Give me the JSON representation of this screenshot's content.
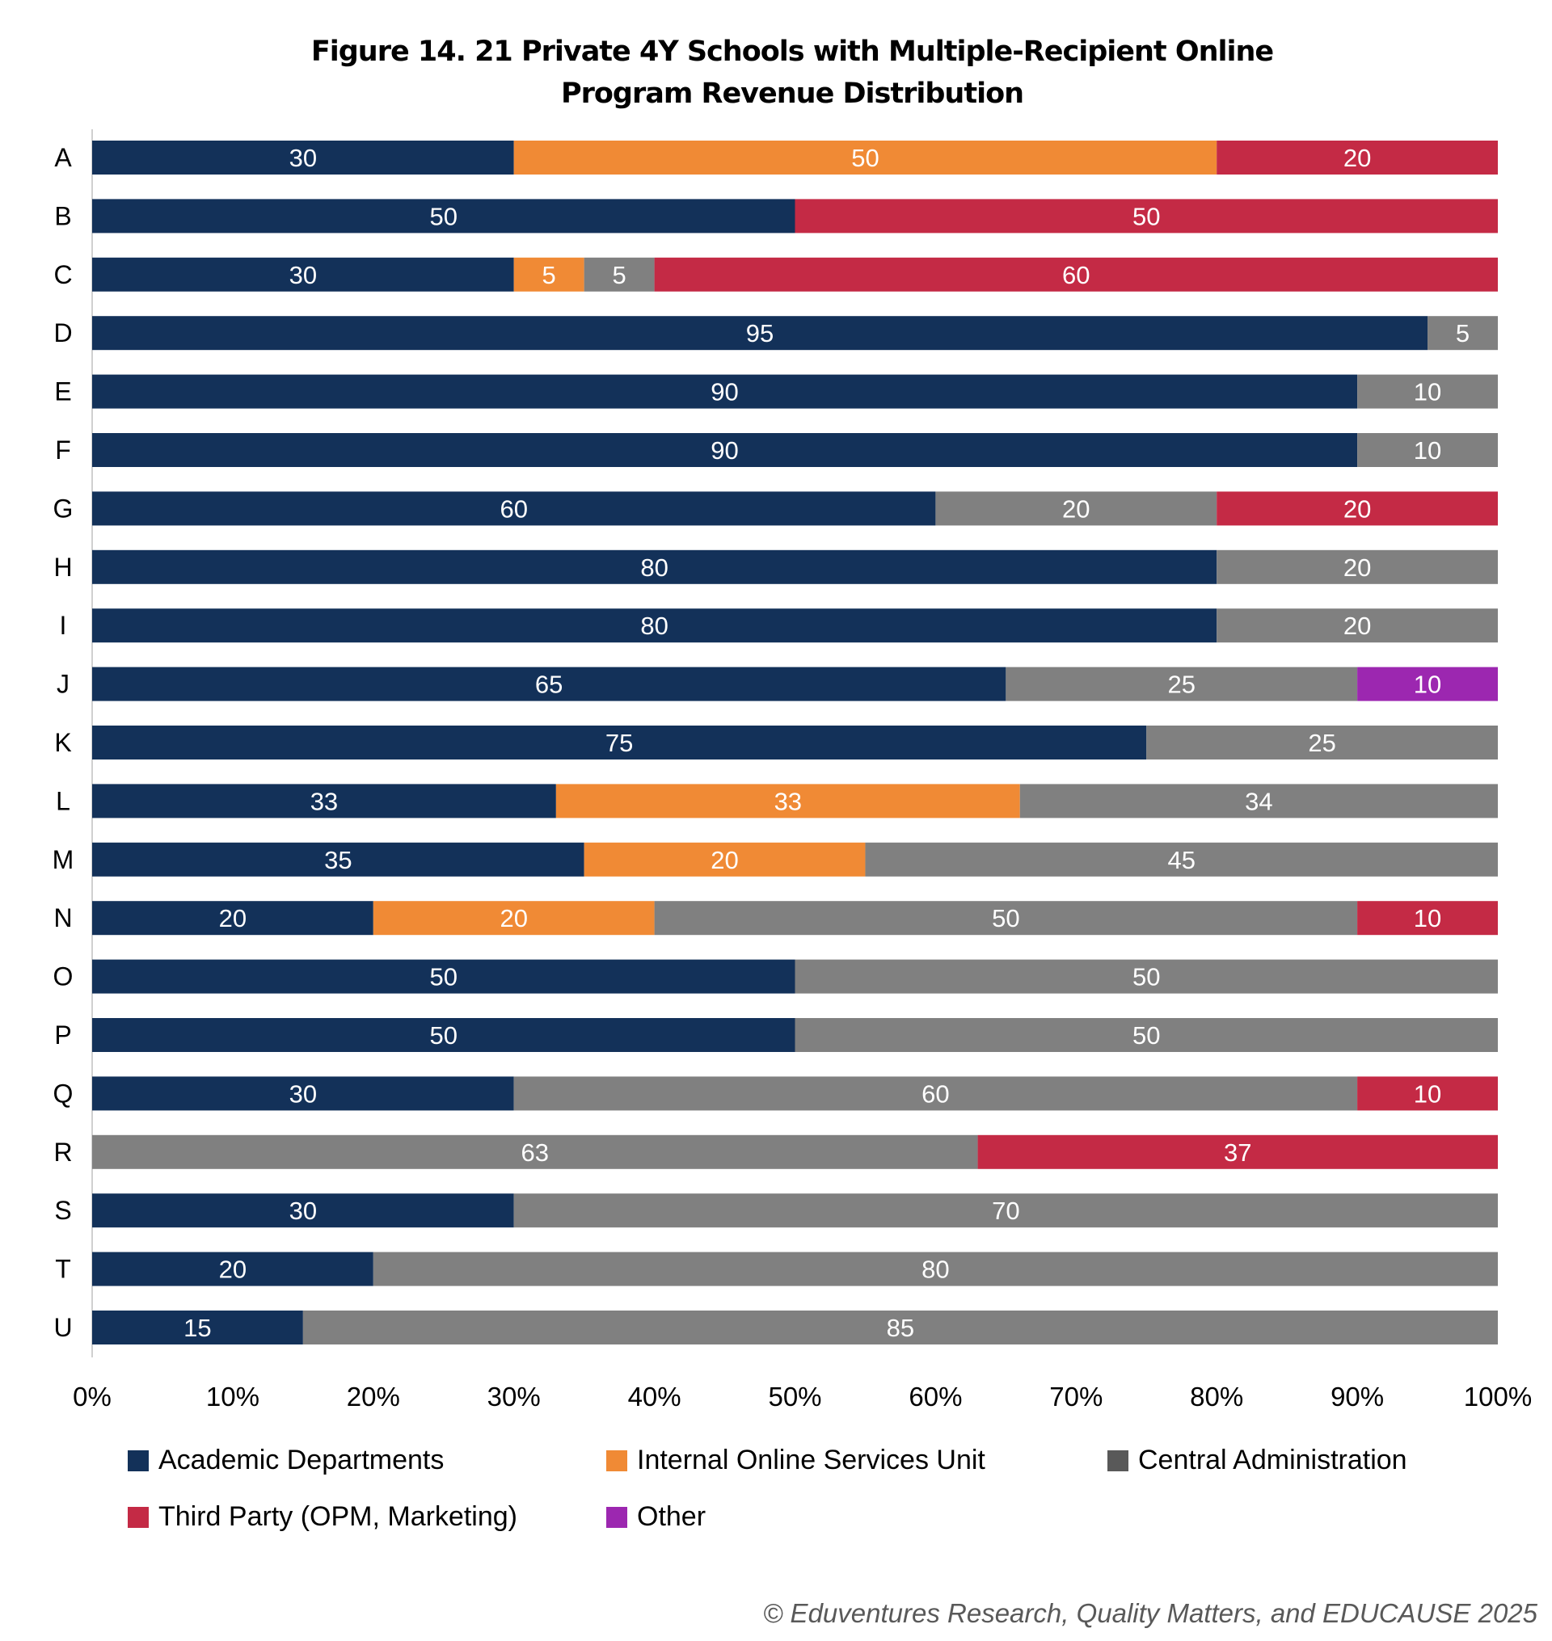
{
  "chart_data": {
    "type": "bar",
    "orientation": "horizontal",
    "stacked": "percent",
    "title_lines": [
      "Figure 14. 21 Private 4Y Schools with Multiple-Recipient Online",
      "Program Revenue Distribution"
    ],
    "categories": [
      "A",
      "B",
      "C",
      "D",
      "E",
      "F",
      "G",
      "H",
      "I",
      "J",
      "K",
      "L",
      "M",
      "N",
      "O",
      "P",
      "Q",
      "R",
      "S",
      "T",
      "U"
    ],
    "series": [
      {
        "name": "Academic Departments",
        "color": "#133159",
        "legend_color": "#133159",
        "values": [
          30,
          50,
          30,
          95,
          90,
          90,
          60,
          80,
          80,
          65,
          75,
          33,
          35,
          20,
          50,
          50,
          30,
          0,
          30,
          20,
          15
        ]
      },
      {
        "name": "Internal Online Services Unit",
        "color": "#F08A35",
        "legend_color": "#F08A35",
        "values": [
          50,
          0,
          5,
          0,
          0,
          0,
          0,
          0,
          0,
          0,
          0,
          33,
          20,
          20,
          0,
          0,
          0,
          0,
          0,
          0,
          0
        ]
      },
      {
        "name": "Central Administration",
        "color": "#808080",
        "legend_color": "#595959",
        "values": [
          0,
          0,
          5,
          5,
          10,
          10,
          20,
          20,
          20,
          25,
          25,
          34,
          45,
          50,
          50,
          50,
          60,
          63,
          70,
          80,
          85
        ]
      },
      {
        "name": "Third Party (OPM, Marketing)",
        "color": "#C42A45",
        "legend_color": "#C42A45",
        "values": [
          20,
          50,
          60,
          0,
          0,
          0,
          20,
          0,
          0,
          0,
          0,
          0,
          0,
          10,
          0,
          0,
          10,
          37,
          0,
          0,
          0
        ]
      },
      {
        "name": "Other",
        "color": "#9C27B0",
        "legend_color": "#9C27B0",
        "values": [
          0,
          0,
          0,
          0,
          0,
          0,
          0,
          0,
          0,
          10,
          0,
          0,
          0,
          0,
          0,
          0,
          0,
          0,
          0,
          0,
          0
        ]
      }
    ],
    "xlim": [
      0,
      100
    ],
    "xticks": [
      "0%",
      "10%",
      "20%",
      "30%",
      "40%",
      "50%",
      "60%",
      "70%",
      "80%",
      "90%",
      "100%"
    ],
    "grid": false,
    "data_labels": true,
    "legend_placement": "bottom"
  },
  "footer": "© Eduventures Research, Quality Matters, and EDUCAUSE 2025"
}
